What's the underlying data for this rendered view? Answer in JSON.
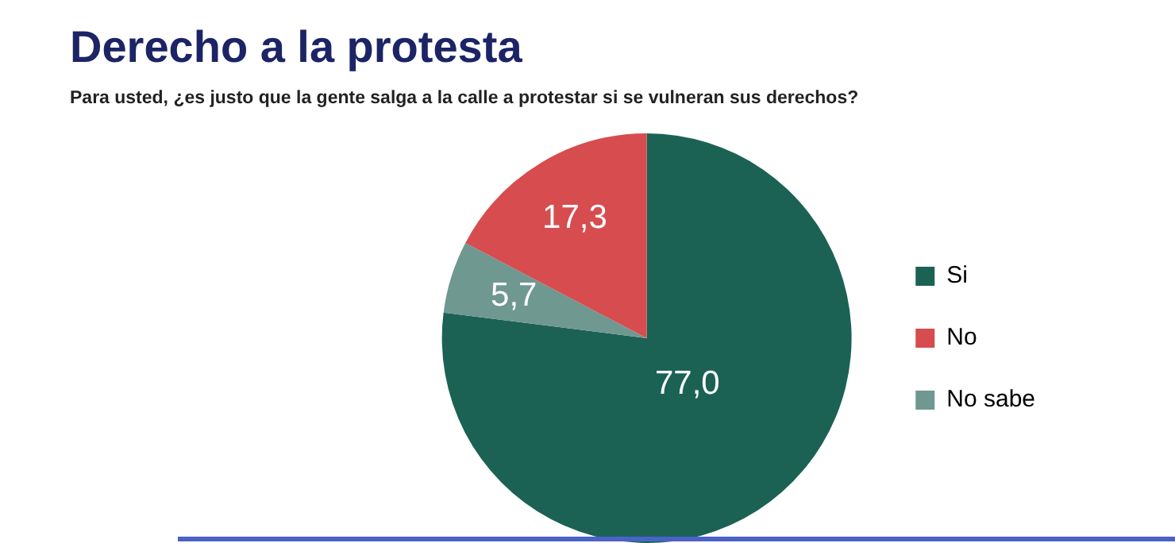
{
  "chart_data": {
    "type": "pie",
    "title": "Derecho a la protesta",
    "subtitle": "Para usted, ¿es justo que la gente salga a la calle a protestar si se vulneran sus derechos?",
    "categories": [
      "Si",
      "No",
      "No sabe"
    ],
    "values": [
      77.0,
      17.3,
      5.7
    ],
    "colors": [
      "#1b6254",
      "#d64c4f",
      "#6f9890"
    ],
    "value_labels": [
      "77,0",
      "17,3",
      "5,7"
    ],
    "legend": "right"
  }
}
